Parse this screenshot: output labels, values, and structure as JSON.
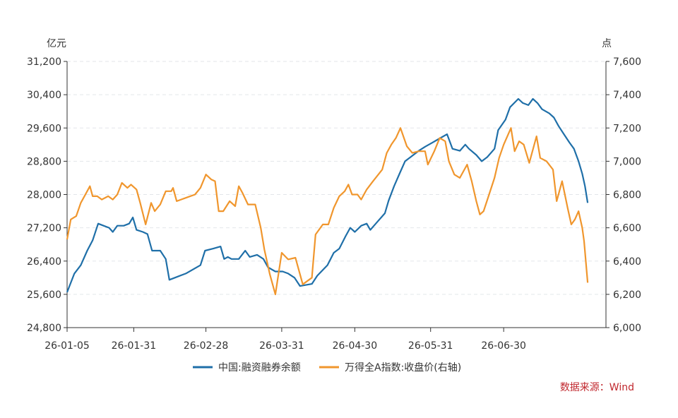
{
  "chart_data": {
    "type": "line",
    "left_unit": "亿元",
    "right_unit": "点",
    "source_text": "数据来源：Wind",
    "x_ticks": [
      "26-01-05",
      "26-01-31",
      "26-02-28",
      "26-03-31",
      "26-04-30",
      "26-05-31",
      "26-06-30"
    ],
    "x_range": [
      0,
      59
    ],
    "x_tick_positions": [
      0,
      7.3,
      15.2,
      23.5,
      31.5,
      39.8,
      47.8
    ],
    "left_axis": {
      "min": 24800,
      "max": 31200,
      "ticks": [
        "24,800",
        "25,600",
        "26,400",
        "27,200",
        "28,000",
        "28,800",
        "29,600",
        "30,400",
        "31,200"
      ],
      "tick_values": [
        24800,
        25600,
        26400,
        27200,
        28000,
        28800,
        29600,
        30400,
        31200
      ]
    },
    "right_axis": {
      "min": 6000,
      "max": 7600,
      "ticks": [
        "6,000",
        "6,200",
        "6,400",
        "6,600",
        "6,800",
        "7,000",
        "7,200",
        "7,400",
        "7,600"
      ],
      "tick_values": [
        6000,
        6200,
        6400,
        6600,
        6800,
        7000,
        7200,
        7400,
        7600
      ]
    },
    "grid": true,
    "legend_position": "bottom",
    "series": [
      {
        "name": "中国:融资融券余额",
        "axis": "left",
        "color": "#1f6fa8",
        "points": [
          [
            0,
            25650
          ],
          [
            0.8,
            26100
          ],
          [
            1.5,
            26300
          ],
          [
            2.2,
            26650
          ],
          [
            2.8,
            26900
          ],
          [
            3.4,
            27300
          ],
          [
            4,
            27250
          ],
          [
            4.6,
            27200
          ],
          [
            5,
            27100
          ],
          [
            5.5,
            27250
          ],
          [
            6.2,
            27250
          ],
          [
            6.8,
            27300
          ],
          [
            7.2,
            27450
          ],
          [
            7.6,
            27150
          ],
          [
            8.3,
            27100
          ],
          [
            8.8,
            27050
          ],
          [
            9.3,
            26650
          ],
          [
            10.2,
            26650
          ],
          [
            10.8,
            26450
          ],
          [
            11.2,
            25950
          ],
          [
            11.8,
            26000
          ],
          [
            13,
            26100
          ],
          [
            14.6,
            26300
          ],
          [
            15.1,
            26650
          ],
          [
            16,
            26700
          ],
          [
            16.8,
            26750
          ],
          [
            17.2,
            26450
          ],
          [
            17.6,
            26500
          ],
          [
            18,
            26450
          ],
          [
            18.8,
            26450
          ],
          [
            19.5,
            26650
          ],
          [
            20,
            26500
          ],
          [
            20.8,
            26550
          ],
          [
            21.5,
            26450
          ],
          [
            22,
            26250
          ],
          [
            22.8,
            26150
          ],
          [
            23.6,
            26150
          ],
          [
            24.2,
            26100
          ],
          [
            24.9,
            26000
          ],
          [
            25.5,
            25800
          ],
          [
            26.8,
            25850
          ],
          [
            27.4,
            26050
          ],
          [
            28.5,
            26300
          ],
          [
            29.2,
            26600
          ],
          [
            29.8,
            26700
          ],
          [
            30.5,
            27000
          ],
          [
            31,
            27200
          ],
          [
            31.5,
            27100
          ],
          [
            32.2,
            27250
          ],
          [
            32.8,
            27300
          ],
          [
            33.2,
            27150
          ],
          [
            33.8,
            27300
          ],
          [
            34.8,
            27550
          ],
          [
            35.2,
            27850
          ],
          [
            35.8,
            28200
          ],
          [
            36.4,
            28500
          ],
          [
            37,
            28800
          ],
          [
            37.6,
            28900
          ],
          [
            38.5,
            29050
          ],
          [
            39.2,
            29150
          ],
          [
            40,
            29250
          ],
          [
            40.8,
            29350
          ],
          [
            41.6,
            29450
          ],
          [
            42.2,
            29100
          ],
          [
            43,
            29050
          ],
          [
            43.6,
            29200
          ],
          [
            44,
            29100
          ],
          [
            44.8,
            28950
          ],
          [
            45.4,
            28800
          ],
          [
            46,
            28900
          ],
          [
            46.8,
            29100
          ],
          [
            47.2,
            29550
          ],
          [
            48,
            29800
          ],
          [
            48.5,
            30100
          ],
          [
            49.4,
            30300
          ],
          [
            49.9,
            30200
          ],
          [
            50.5,
            30150
          ],
          [
            51,
            30300
          ],
          [
            51.5,
            30200
          ],
          [
            52,
            30050
          ],
          [
            52.8,
            29950
          ],
          [
            53.3,
            29850
          ],
          [
            53.8,
            29650
          ],
          [
            54.4,
            29450
          ],
          [
            55,
            29250
          ],
          [
            55.5,
            29100
          ],
          [
            56,
            28800
          ],
          [
            56.4,
            28500
          ],
          [
            56.7,
            28200
          ],
          [
            57,
            27800
          ]
        ]
      },
      {
        "name": "万得全A指数:收盘价(右轴)",
        "axis": "right",
        "color": "#f0962d",
        "points": [
          [
            0,
            6530
          ],
          [
            0.4,
            6650
          ],
          [
            1,
            6670
          ],
          [
            1.5,
            6750
          ],
          [
            2,
            6800
          ],
          [
            2.5,
            6850
          ],
          [
            2.8,
            6790
          ],
          [
            3.3,
            6790
          ],
          [
            3.8,
            6770
          ],
          [
            4.5,
            6790
          ],
          [
            5,
            6770
          ],
          [
            5.5,
            6800
          ],
          [
            6,
            6870
          ],
          [
            6.6,
            6840
          ],
          [
            7,
            6860
          ],
          [
            7.6,
            6830
          ],
          [
            8,
            6750
          ],
          [
            8.6,
            6620
          ],
          [
            9.2,
            6750
          ],
          [
            9.6,
            6700
          ],
          [
            10.2,
            6740
          ],
          [
            10.8,
            6820
          ],
          [
            11.4,
            6820
          ],
          [
            11.6,
            6840
          ],
          [
            12,
            6760
          ],
          [
            13,
            6780
          ],
          [
            14,
            6800
          ],
          [
            14.6,
            6840
          ],
          [
            15.2,
            6920
          ],
          [
            15.8,
            6890
          ],
          [
            16.2,
            6880
          ],
          [
            16.6,
            6700
          ],
          [
            17.1,
            6700
          ],
          [
            17.8,
            6760
          ],
          [
            18.4,
            6730
          ],
          [
            18.8,
            6850
          ],
          [
            19.2,
            6810
          ],
          [
            19.8,
            6740
          ],
          [
            20.6,
            6740
          ],
          [
            21.2,
            6600
          ],
          [
            21.6,
            6470
          ],
          [
            22.2,
            6320
          ],
          [
            22.8,
            6200
          ],
          [
            23.5,
            6450
          ],
          [
            24.2,
            6410
          ],
          [
            25,
            6420
          ],
          [
            25.8,
            6260
          ],
          [
            26.8,
            6300
          ],
          [
            27.2,
            6560
          ],
          [
            28,
            6620
          ],
          [
            28.6,
            6620
          ],
          [
            29.2,
            6720
          ],
          [
            29.8,
            6790
          ],
          [
            30.4,
            6820
          ],
          [
            30.8,
            6860
          ],
          [
            31.2,
            6800
          ],
          [
            31.8,
            6800
          ],
          [
            32.2,
            6770
          ],
          [
            32.8,
            6830
          ],
          [
            33.5,
            6880
          ],
          [
            34.5,
            6950
          ],
          [
            35,
            7050
          ],
          [
            35.5,
            7100
          ],
          [
            36,
            7140
          ],
          [
            36.5,
            7200
          ],
          [
            37.2,
            7090
          ],
          [
            37.8,
            7050
          ],
          [
            38.5,
            7060
          ],
          [
            39.2,
            7060
          ],
          [
            39.5,
            6980
          ],
          [
            40.2,
            7060
          ],
          [
            40.8,
            7140
          ],
          [
            41.4,
            7120
          ],
          [
            41.8,
            7000
          ],
          [
            42.4,
            6920
          ],
          [
            43,
            6900
          ],
          [
            43.8,
            6980
          ],
          [
            44.3,
            6880
          ],
          [
            44.8,
            6760
          ],
          [
            45.2,
            6680
          ],
          [
            45.6,
            6700
          ],
          [
            46.2,
            6800
          ],
          [
            46.8,
            6900
          ],
          [
            47.3,
            7020
          ],
          [
            47.8,
            7100
          ],
          [
            48.6,
            7200
          ],
          [
            49,
            7060
          ],
          [
            49.5,
            7120
          ],
          [
            50,
            7100
          ],
          [
            50.6,
            6990
          ],
          [
            51.4,
            7150
          ],
          [
            51.8,
            7020
          ],
          [
            52.5,
            7000
          ],
          [
            53.2,
            6950
          ],
          [
            53.6,
            6760
          ],
          [
            54.2,
            6880
          ],
          [
            54.8,
            6720
          ],
          [
            55.2,
            6620
          ],
          [
            55.6,
            6650
          ],
          [
            56,
            6700
          ],
          [
            56.4,
            6600
          ],
          [
            56.6,
            6520
          ],
          [
            57,
            6270
          ]
        ]
      }
    ]
  }
}
